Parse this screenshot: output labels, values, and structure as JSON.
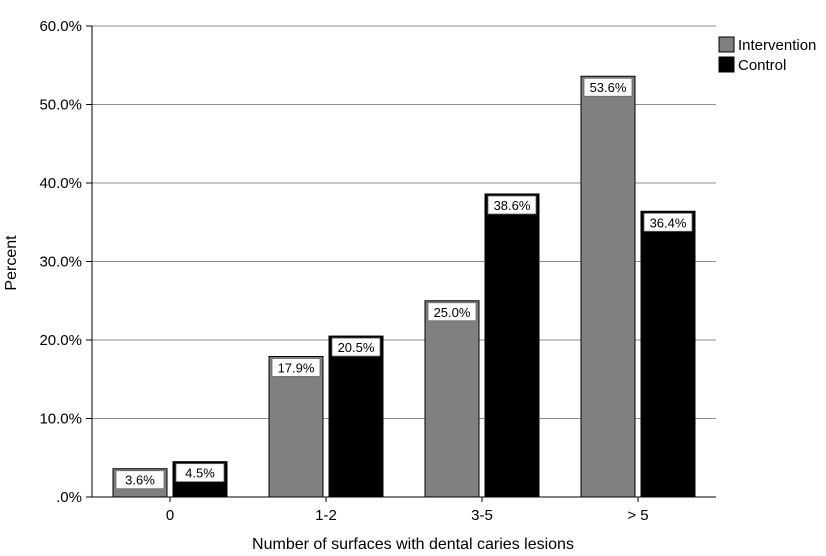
{
  "chart_data": {
    "type": "bar",
    "title": "",
    "xlabel": "Number of surfaces with dental caries lesions",
    "ylabel": "Percent",
    "categories": [
      "0",
      "1-2",
      "3-5",
      "> 5"
    ],
    "series": [
      {
        "name": "Intervention",
        "color": "#808080",
        "values": [
          3.6,
          17.9,
          25.0,
          53.6
        ],
        "labels": [
          "3.6%",
          "17.9%",
          "25.0%",
          "53.6%"
        ]
      },
      {
        "name": "Control",
        "color": "#000000",
        "values": [
          4.5,
          20.5,
          38.6,
          36.4
        ],
        "labels": [
          "4.5%",
          "20.5%",
          "38.6%",
          "36.4%"
        ]
      }
    ],
    "ylim": [
      0,
      60
    ],
    "yticks": [
      0,
      10,
      20,
      30,
      40,
      50,
      60
    ],
    "ytick_labels": [
      ".0%",
      "10.0%",
      "20.0%",
      "30.0%",
      "40.0%",
      "50.0%",
      "60.0%"
    ],
    "grid": true,
    "legend_position": "top-right"
  }
}
